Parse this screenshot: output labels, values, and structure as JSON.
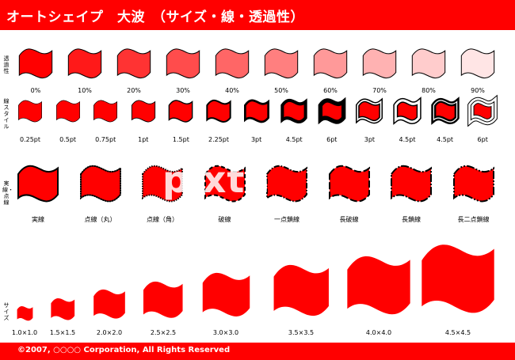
{
  "header": {
    "title": "オートシェイプ　大波　（サイズ・線・透過性）",
    "bar_color": "#ff0000"
  },
  "rows": {
    "transparency": {
      "label": "透過性"
    },
    "line_style": {
      "label": "線スタイル"
    },
    "dash": {
      "label": "実線・点線"
    },
    "size": {
      "label": "サイズ"
    }
  },
  "transparency_items": [
    {
      "label": "0%",
      "opacity": 1.0
    },
    {
      "label": "10%",
      "opacity": 0.9
    },
    {
      "label": "20%",
      "opacity": 0.8
    },
    {
      "label": "30%",
      "opacity": 0.7
    },
    {
      "label": "40%",
      "opacity": 0.6
    },
    {
      "label": "50%",
      "opacity": 0.5
    },
    {
      "label": "60%",
      "opacity": 0.4
    },
    {
      "label": "70%",
      "opacity": 0.3
    },
    {
      "label": "80%",
      "opacity": 0.2
    },
    {
      "label": "90%",
      "opacity": 0.1
    }
  ],
  "line_items": [
    {
      "label": "0.25pt",
      "weight": 0.25,
      "style": "single"
    },
    {
      "label": "0.5pt",
      "weight": 0.5,
      "style": "single"
    },
    {
      "label": "0.75pt",
      "weight": 0.75,
      "style": "single"
    },
    {
      "label": "1pt",
      "weight": 1,
      "style": "single"
    },
    {
      "label": "1.5pt",
      "weight": 1.5,
      "style": "single"
    },
    {
      "label": "2.25pt",
      "weight": 2.25,
      "style": "single"
    },
    {
      "label": "3pt",
      "weight": 3,
      "style": "single"
    },
    {
      "label": "4.5pt",
      "weight": 4.5,
      "style": "single"
    },
    {
      "label": "6pt",
      "weight": 6,
      "style": "single"
    },
    {
      "label": "3pt",
      "weight": 3,
      "style": "double"
    },
    {
      "label": "4.5pt",
      "weight": 4.5,
      "style": "double"
    },
    {
      "label": "4.5pt",
      "weight": 4.5,
      "style": "thin-thick"
    },
    {
      "label": "6pt",
      "weight": 6,
      "style": "triple"
    }
  ],
  "dash_items": [
    {
      "label": "実線",
      "dash": "solid"
    },
    {
      "label": "点線（丸）",
      "dash": "round-dot"
    },
    {
      "label": "点線（角）",
      "dash": "square-dot"
    },
    {
      "label": "破線",
      "dash": "dash"
    },
    {
      "label": "一点鎖線",
      "dash": "dash-dot"
    },
    {
      "label": "長破線",
      "dash": "long-dash"
    },
    {
      "label": "長鎖線",
      "dash": "long-dash-dot"
    },
    {
      "label": "長二点鎖線",
      "dash": "long-dash-dot-dot"
    }
  ],
  "size_items": [
    {
      "label": "1.0×1.0",
      "scale": 1.0
    },
    {
      "label": "1.5×1.5",
      "scale": 1.5
    },
    {
      "label": "2.0×2.0",
      "scale": 2.0
    },
    {
      "label": "2.5×2.5",
      "scale": 2.5
    },
    {
      "label": "3.0×3.0",
      "scale": 3.0
    },
    {
      "label": "3.5×3.5",
      "scale": 3.5
    },
    {
      "label": "4.0×4.0",
      "scale": 4.0
    },
    {
      "label": "4.5×4.5",
      "scale": 4.5
    }
  ],
  "watermark": "pixta",
  "colors": {
    "fill": "#ff0000",
    "outline": "#000000"
  },
  "footer": {
    "copyright": "©2007, ○○○○ Corporation, All Rights Reserved"
  }
}
